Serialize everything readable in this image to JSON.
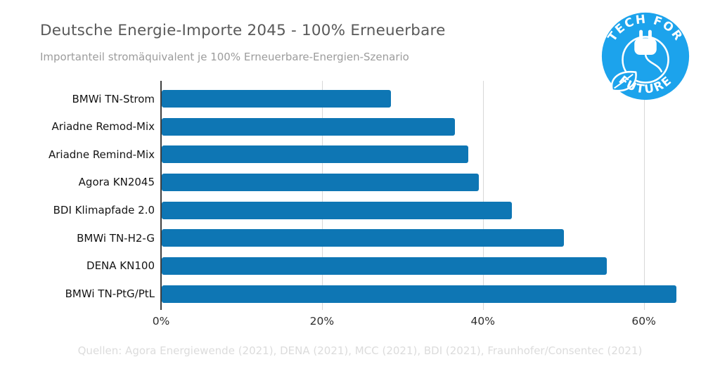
{
  "header": {
    "title": "Deutsche Energie-Importe 2045 - 100% Erneuerbare",
    "subtitle": "Importanteil stromäquivalent je 100% Erneuerbare-Energien-Szenario"
  },
  "logo": {
    "text_top": "TECH FOR",
    "text_bottom": "FUTURE",
    "color": "#1ca3ec"
  },
  "chart_data": {
    "type": "bar",
    "orientation": "horizontal",
    "title": "Deutsche Energie-Importe 2045 - 100% Erneuerbare",
    "subtitle": "Importanteil stromäquivalent je 100% Erneuerbare-Energien-Szenario",
    "categories": [
      "BMWi TN-Strom",
      "Ariadne Remod-Mix",
      "Ariadne Remind-Mix",
      "Agora KN2045",
      "BDI Klimapfade 2.0",
      "BMWi TN-H2-G",
      "DENA KN100",
      "BMWi TN-PtG/PtL"
    ],
    "values": [
      28.5,
      36.4,
      38.1,
      39.4,
      43.5,
      50.0,
      55.3,
      64.0
    ],
    "unit": "%",
    "xlabel": "",
    "ylabel": "",
    "xlim": [
      0,
      66.5
    ],
    "xticks": [
      {
        "value": 0,
        "label": "0%"
      },
      {
        "value": 20,
        "label": "20%"
      },
      {
        "value": 40,
        "label": "40%"
      },
      {
        "value": 60,
        "label": "60%"
      }
    ],
    "grid": true,
    "legend": false,
    "bar_color": "#0e76b4",
    "gridline_color": "#d8d8d8",
    "axis_color": "#3f3f3f"
  },
  "footer": {
    "sources": "Quellen: Agora Energiewende (2021), DENA (2021), MCC (2021), BDI (2021), Fraunhofer/Consentec (2021)"
  }
}
